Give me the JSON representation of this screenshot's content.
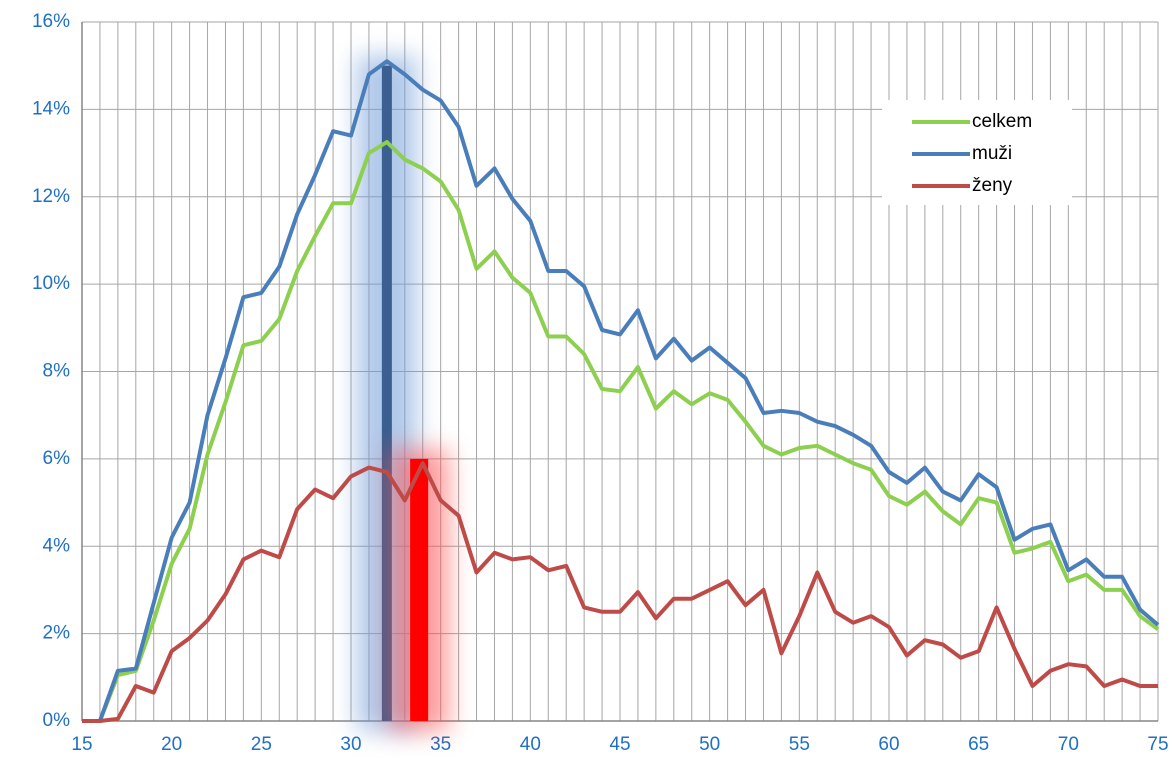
{
  "chart_data": {
    "type": "line",
    "x": [
      15,
      16,
      17,
      18,
      19,
      20,
      21,
      22,
      23,
      24,
      25,
      26,
      27,
      28,
      29,
      30,
      31,
      32,
      33,
      34,
      35,
      36,
      37,
      38,
      39,
      40,
      41,
      42,
      43,
      44,
      45,
      46,
      47,
      48,
      49,
      50,
      51,
      52,
      53,
      54,
      55,
      56,
      57,
      58,
      59,
      60,
      61,
      62,
      63,
      64,
      65,
      66,
      67,
      68,
      69,
      70,
      71,
      72,
      73,
      74,
      75
    ],
    "series": [
      {
        "name": "celkem",
        "color": "#8dcf4f",
        "values": [
          0,
          0,
          1.05,
          1.15,
          2.3,
          3.6,
          4.4,
          6.1,
          7.3,
          8.6,
          8.7,
          9.2,
          10.3,
          11.1,
          11.85,
          11.85,
          13.0,
          13.25,
          12.85,
          12.65,
          12.35,
          11.7,
          10.35,
          10.75,
          10.15,
          9.8,
          8.8,
          8.8,
          8.4,
          7.6,
          7.55,
          8.1,
          7.15,
          7.55,
          7.25,
          7.5,
          7.35,
          6.85,
          6.3,
          6.1,
          6.25,
          6.3,
          6.1,
          5.9,
          5.75,
          5.15,
          4.95,
          5.25,
          4.8,
          4.5,
          5.1,
          5.0,
          3.85,
          3.95,
          4.1,
          3.2,
          3.35,
          3.0,
          3.0,
          2.4,
          2.1
        ]
      },
      {
        "name": "muži",
        "color": "#4a7ebb",
        "values": [
          0,
          0,
          1.15,
          1.2,
          2.7,
          4.2,
          5.0,
          7.0,
          8.3,
          9.7,
          9.8,
          10.4,
          11.6,
          12.5,
          13.5,
          13.4,
          14.8,
          15.1,
          14.8,
          14.45,
          14.2,
          13.6,
          12.25,
          12.65,
          11.95,
          11.45,
          10.3,
          10.3,
          9.95,
          8.95,
          8.85,
          9.4,
          8.3,
          8.75,
          8.25,
          8.55,
          8.2,
          7.85,
          7.05,
          7.1,
          7.05,
          6.85,
          6.75,
          6.55,
          6.3,
          5.7,
          5.45,
          5.8,
          5.25,
          5.05,
          5.65,
          5.35,
          4.15,
          4.4,
          4.5,
          3.45,
          3.7,
          3.3,
          3.3,
          2.55,
          2.2
        ]
      },
      {
        "name": "ženy",
        "color": "#be4b48",
        "values": [
          0,
          0,
          0.05,
          0.8,
          0.65,
          1.6,
          1.9,
          2.3,
          2.9,
          3.7,
          3.9,
          3.75,
          4.85,
          5.3,
          5.1,
          5.6,
          5.8,
          5.7,
          5.05,
          5.9,
          5.05,
          4.7,
          3.4,
          3.85,
          3.7,
          3.75,
          3.45,
          3.55,
          2.6,
          2.5,
          2.5,
          2.95,
          2.35,
          2.8,
          2.8,
          3.0,
          3.2,
          2.65,
          3.0,
          1.55,
          2.4,
          3.4,
          2.5,
          2.25,
          2.4,
          2.15,
          1.5,
          1.85,
          1.75,
          1.45,
          1.6,
          2.6,
          1.65,
          0.8,
          1.15,
          1.3,
          1.25,
          0.8,
          0.95,
          0.8,
          0.8
        ]
      }
    ],
    "markers": [
      {
        "x": 32,
        "value": 15,
        "color": "#3a5f90",
        "glow": "#6f9bd8"
      },
      {
        "x": 33.8,
        "value": 6,
        "color": "#ff0000",
        "glow": "#ff5050"
      }
    ],
    "xlim": [
      15,
      75
    ],
    "xticks": [
      15,
      20,
      25,
      30,
      35,
      40,
      45,
      50,
      55,
      60,
      65,
      70,
      75
    ],
    "ylim": [
      0,
      16
    ],
    "yticks": [
      {
        "value": 0,
        "label": "0%"
      },
      {
        "value": 2,
        "label": "2%"
      },
      {
        "value": 4,
        "label": "4%"
      },
      {
        "value": 6,
        "label": "6%"
      },
      {
        "value": 8,
        "label": "8%"
      },
      {
        "value": 10,
        "label": "10%"
      },
      {
        "value": 12,
        "label": "12%"
      },
      {
        "value": 14,
        "label": "14%"
      },
      {
        "value": 16,
        "label": "16%"
      }
    ],
    "grid": true,
    "legend": "upper right"
  }
}
